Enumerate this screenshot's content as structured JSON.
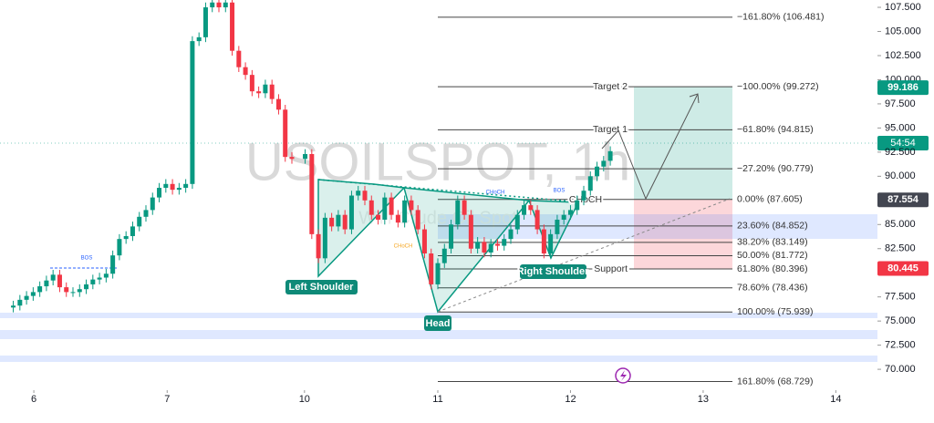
{
  "chart_data": {
    "type": "candlestick",
    "watermark": "USOILSPOT, 1h",
    "watermark_sub": "WTI Crude Oil Spot",
    "up_color": "#089981",
    "down_color": "#f23645",
    "ylim": [
      68.12,
      108.26
    ],
    "xlim": [
      0,
      132
    ],
    "yticks": [
      {
        "value": 107.5,
        "label": "107.500"
      },
      {
        "value": 105,
        "label": "105.000"
      },
      {
        "value": 102.5,
        "label": "102.500"
      },
      {
        "value": 100,
        "label": "100.000"
      },
      {
        "value": 97.5,
        "label": "97.500"
      },
      {
        "value": 95,
        "label": "95.000"
      },
      {
        "value": 92.5,
        "label": "92.500"
      },
      {
        "value": 90,
        "label": "90.000"
      },
      {
        "value": 85,
        "label": "85.000"
      },
      {
        "value": 82.5,
        "label": "82.500"
      },
      {
        "value": 77.5,
        "label": "77.500"
      },
      {
        "value": 75,
        "label": "75.000"
      },
      {
        "value": 72.5,
        "label": "72.500"
      },
      {
        "value": 70,
        "label": "70.000"
      }
    ],
    "xticks": [
      {
        "value": 5.1,
        "label": "6"
      },
      {
        "value": 25.2,
        "label": "7"
      },
      {
        "value": 45.9,
        "label": "10"
      },
      {
        "value": 66.0,
        "label": "11"
      },
      {
        "value": 86.0,
        "label": "12"
      },
      {
        "value": 106.0,
        "label": "13"
      },
      {
        "value": 126.0,
        "label": "14"
      }
    ],
    "open": [
      76.4,
      76.6,
      77.2,
      77.6,
      78.0,
      78.6,
      79.2,
      79.8,
      78.5,
      78.0,
      78.0,
      78.3,
      78.8,
      79.3,
      79.5,
      79.9,
      81.8,
      83.5,
      83.8,
      84.8,
      85.8,
      86.5,
      87.8,
      88.8,
      89.2,
      88.6,
      88.8,
      89.2,
      104.0,
      104.4,
      107.5,
      108.0,
      107.5,
      108.0,
      103.0,
      101.3,
      100.5,
      98.8,
      98.6,
      99.5,
      98.0,
      96.9,
      92.0,
      91.8,
      92.3,
      84.0,
      81.5,
      85.7,
      84.8,
      86.0,
      84.5,
      88.0,
      88.5,
      87.5,
      86.0,
      85.5,
      87.8,
      86.0,
      85.2,
      87.5,
      86.5,
      84.5,
      82.0,
      78.8,
      81.0,
      82.5,
      85.0,
      87.5,
      86.0,
      82.5,
      83.2,
      82.1,
      83.0,
      82.8,
      83.5,
      84.5,
      86.0,
      87.0,
      86.5,
      84.5,
      82.0,
      84.0,
      85.5,
      86.0,
      86.5,
      87.5,
      88.5,
      90.0,
      91.0,
      91.6
    ],
    "high": [
      77.1,
      77.7,
      78.1,
      78.5,
      79.1,
      79.7,
      80.3,
      80.3,
      79.0,
      78.5,
      78.8,
      79.3,
      79.8,
      80.0,
      80.4,
      82.3,
      84.0,
      84.3,
      85.3,
      86.3,
      87.0,
      88.3,
      89.3,
      89.7,
      89.7,
      89.3,
      89.7,
      104.5,
      104.9,
      108.0,
      108.5,
      108.5,
      108.5,
      108.5,
      103.5,
      101.8,
      101.0,
      99.3,
      100.0,
      100.0,
      98.5,
      97.4,
      92.5,
      92.8,
      92.8,
      84.5,
      86.2,
      86.2,
      86.5,
      86.5,
      88.5,
      89.0,
      89.0,
      88.0,
      86.5,
      88.3,
      88.3,
      86.5,
      88.0,
      88.0,
      87.0,
      85.0,
      82.5,
      81.5,
      83.0,
      85.5,
      88.0,
      88.0,
      86.5,
      83.7,
      83.7,
      83.5,
      83.5,
      84.0,
      85.0,
      86.5,
      87.5,
      87.5,
      87.0,
      85.0,
      84.5,
      86.0,
      86.5,
      87.0,
      88.0,
      89.0,
      90.5,
      91.5,
      92.1,
      93.1
    ],
    "low": [
      75.9,
      76.1,
      76.7,
      77.1,
      77.5,
      78.1,
      78.7,
      78.0,
      77.5,
      77.5,
      77.5,
      77.8,
      78.3,
      78.8,
      79.0,
      79.4,
      81.3,
      83.0,
      83.3,
      84.3,
      85.3,
      86.0,
      87.3,
      88.3,
      88.1,
      88.1,
      88.3,
      88.7,
      103.5,
      103.9,
      107.0,
      107.0,
      107.0,
      102.5,
      100.8,
      100.0,
      98.3,
      98.1,
      98.1,
      97.5,
      96.4,
      91.5,
      91.3,
      91.3,
      83.5,
      81.0,
      81.0,
      84.3,
      84.3,
      84.0,
      84.0,
      87.5,
      87.0,
      85.5,
      85.0,
      85.0,
      85.5,
      84.7,
      84.7,
      86.0,
      84.0,
      81.5,
      78.3,
      78.3,
      80.5,
      82.0,
      84.5,
      85.5,
      82.0,
      82.0,
      81.6,
      81.6,
      82.3,
      82.3,
      83.0,
      84.0,
      85.5,
      86.0,
      84.0,
      81.5,
      81.5,
      83.5,
      85.0,
      85.5,
      86.0,
      87.0,
      88.0,
      89.5,
      90.5,
      91.1
    ],
    "close": [
      76.6,
      77.2,
      77.6,
      78.0,
      78.6,
      79.2,
      79.8,
      78.5,
      78.0,
      78.0,
      78.3,
      78.8,
      79.3,
      79.5,
      79.9,
      81.8,
      83.5,
      83.8,
      84.8,
      85.8,
      86.5,
      87.8,
      88.8,
      89.2,
      88.6,
      88.8,
      89.2,
      104.0,
      104.4,
      107.5,
      108.0,
      107.5,
      108.0,
      103.0,
      101.3,
      100.5,
      98.8,
      98.6,
      99.5,
      98.0,
      96.9,
      92.0,
      91.8,
      92.3,
      84.0,
      81.5,
      85.7,
      84.8,
      86.0,
      84.5,
      88.0,
      88.5,
      87.5,
      86.0,
      85.5,
      87.8,
      86.0,
      85.2,
      87.5,
      86.5,
      84.5,
      82.0,
      78.8,
      81.0,
      82.5,
      85.0,
      87.5,
      86.0,
      82.5,
      83.2,
      82.1,
      83.0,
      82.8,
      83.5,
      84.5,
      86.0,
      87.0,
      86.5,
      84.5,
      82.0,
      84.0,
      85.5,
      86.0,
      86.5,
      87.5,
      88.5,
      90.0,
      91.0,
      91.6,
      92.6
    ],
    "fib_levels": [
      {
        "value": 106.481,
        "label": "−161.80% (106.481)"
      },
      {
        "value": 99.272,
        "label": "−100.00% (99.272)"
      },
      {
        "value": 94.815,
        "label": "−61.80% (94.815)"
      },
      {
        "value": 90.779,
        "label": "−27.20% (90.779)"
      },
      {
        "value": 87.605,
        "label": "0.00% (87.605)"
      },
      {
        "value": 84.852,
        "label": "23.60% (84.852)"
      },
      {
        "value": 83.149,
        "label": "38.20% (83.149)"
      },
      {
        "value": 81.772,
        "label": "50.00% (81.772)"
      },
      {
        "value": 80.396,
        "label": "61.80% (80.396)"
      },
      {
        "value": 78.436,
        "label": "78.60% (78.436)"
      },
      {
        "value": 75.939,
        "label": "100.00% (75.939)"
      },
      {
        "value": 68.729,
        "label": "161.80% (68.729)"
      }
    ],
    "level_names": [
      {
        "value": 99.272,
        "label": "Target 2"
      },
      {
        "value": 94.815,
        "label": "Target 1"
      },
      {
        "value": 80.396,
        "label": "Support"
      }
    ],
    "price_labels": [
      {
        "value": 99.186,
        "color": "#089981"
      },
      {
        "value": 87.554,
        "color": "#434651"
      },
      {
        "value": 80.445,
        "color": "#f23645"
      }
    ],
    "countdown": "54:54",
    "pattern_labels": {
      "left_shoulder": "Left Shoulder",
      "head": "Head",
      "right_shoulder": "Right Shoulder"
    },
    "structure_labels": {
      "bos_1": "BOS",
      "bos_2": "BOS",
      "choch_1": "CHoCH",
      "choch_2": "CHoCH",
      "choch_3": "CHoCH"
    }
  }
}
